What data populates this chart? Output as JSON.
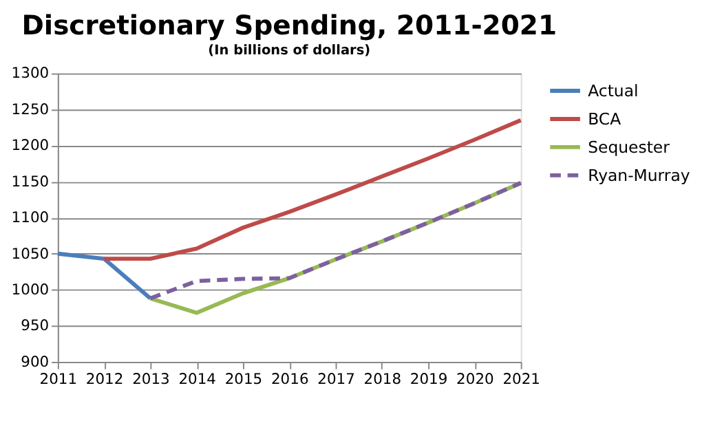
{
  "chart_data": {
    "type": "line",
    "title": "Discretionary Spending, 2011-2021",
    "subtitle": "(In billions of dollars)",
    "x": [
      2011,
      2012,
      2013,
      2014,
      2015,
      2016,
      2017,
      2018,
      2019,
      2020,
      2021
    ],
    "xlim": [
      2011,
      2021
    ],
    "xticks": [
      2011,
      2012,
      2013,
      2014,
      2015,
      2016,
      2017,
      2018,
      2019,
      2020,
      2021
    ],
    "ylim": [
      900,
      1300
    ],
    "yticks": [
      900,
      950,
      1000,
      1050,
      1100,
      1150,
      1200,
      1250,
      1300
    ],
    "grid": "y",
    "legend": "right",
    "marker": "none",
    "series": [
      {
        "name": "Actual",
        "color": "#4a7ebb",
        "line_style": "solid",
        "values": [
          1050,
          1043,
          988,
          null,
          null,
          null,
          null,
          null,
          null,
          null,
          null
        ]
      },
      {
        "name": "BCA",
        "color": "#be4b48",
        "line_style": "solid",
        "values": [
          null,
          1043,
          1043,
          1057,
          1086,
          1108,
          1132,
          1157,
          1182,
          1208,
          1235
        ]
      },
      {
        "name": "Sequester",
        "color": "#98b954",
        "line_style": "solid",
        "values": [
          null,
          null,
          988,
          968,
          995,
          1016,
          1042,
          1067,
          1093,
          1120,
          1148
        ]
      },
      {
        "name": "Ryan-Murray",
        "color": "#7d60a0",
        "line_style": "dashed",
        "values": [
          null,
          null,
          988,
          1012,
          1015,
          1016,
          1042,
          1067,
          1093,
          1120,
          1148
        ]
      }
    ]
  }
}
